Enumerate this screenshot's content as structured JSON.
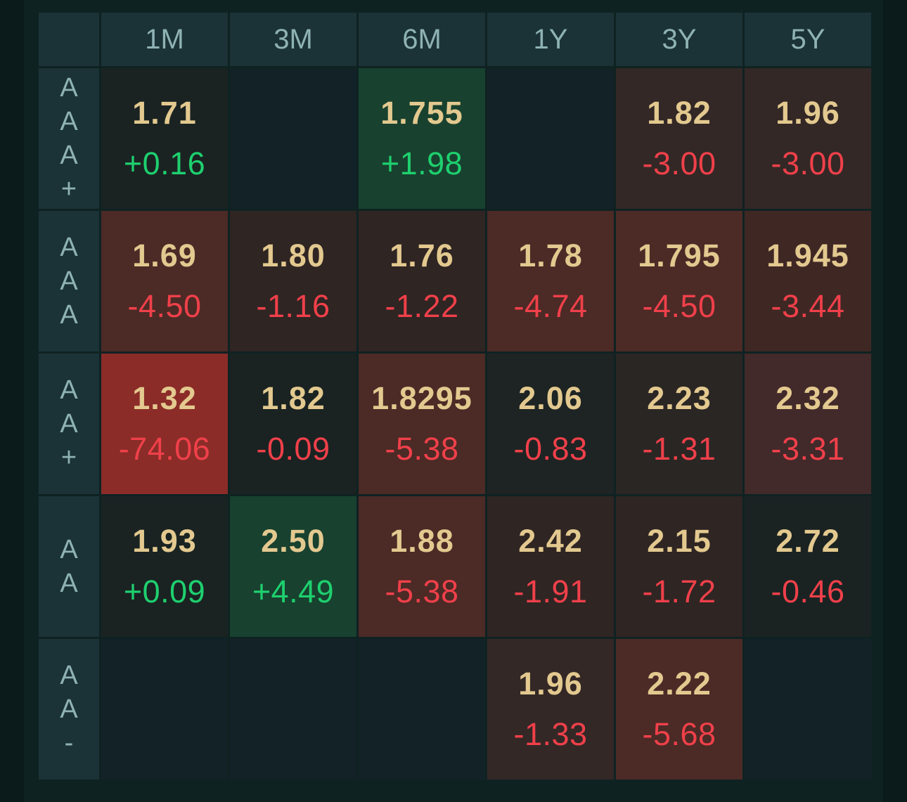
{
  "columns": [
    "1M",
    "3M",
    "6M",
    "1Y",
    "3Y",
    "5Y"
  ],
  "colors": {
    "neutral": "#132226",
    "neutral_dark": "#1a2322",
    "green_mid": "#18412f",
    "red_light": "#2f2523",
    "red_mid": "#4c2a26",
    "red_strong": "#8b2c28",
    "value_text": "#e3c98f",
    "positive": "#1ed06f",
    "negative": "#f0404a"
  },
  "rows": [
    {
      "label_chars": [
        "A",
        "A",
        "A",
        "+"
      ],
      "cells": [
        {
          "value": "1.71",
          "change": "+0.16",
          "shade": "#1a2322"
        },
        {
          "value": "",
          "change": "",
          "shade": "#132226"
        },
        {
          "value": "1.755",
          "change": "+1.98",
          "shade": "#18412f"
        },
        {
          "value": "",
          "change": "",
          "shade": "#132226"
        },
        {
          "value": "1.82",
          "change": "-3.00",
          "shade": "#332826"
        },
        {
          "value": "1.96",
          "change": "-3.00",
          "shade": "#332826"
        }
      ]
    },
    {
      "label_chars": [
        "A",
        "A",
        "A"
      ],
      "cells": [
        {
          "value": "1.69",
          "change": "-4.50",
          "shade": "#4c2a26"
        },
        {
          "value": "1.80",
          "change": "-1.16",
          "shade": "#2f2523"
        },
        {
          "value": "1.76",
          "change": "-1.22",
          "shade": "#2f2523"
        },
        {
          "value": "1.78",
          "change": "-4.74",
          "shade": "#4c2a26"
        },
        {
          "value": "1.795",
          "change": "-4.50",
          "shade": "#4c2a26"
        },
        {
          "value": "1.945",
          "change": "-3.44",
          "shade": "#3f2824"
        }
      ]
    },
    {
      "label_chars": [
        "A",
        "A",
        "+"
      ],
      "cells": [
        {
          "value": "1.32",
          "change": "-74.06",
          "shade": "#8b2c28"
        },
        {
          "value": "1.82",
          "change": "-0.09",
          "shade": "#1a2322"
        },
        {
          "value": "1.8295",
          "change": "-5.38",
          "shade": "#4c2a26"
        },
        {
          "value": "2.06",
          "change": "-0.83",
          "shade": "#1e2423"
        },
        {
          "value": "2.23",
          "change": "-1.31",
          "shade": "#2a2624"
        },
        {
          "value": "2.32",
          "change": "-3.31",
          "shade": "#42292a"
        }
      ]
    },
    {
      "label_chars": [
        "A",
        "A"
      ],
      "cells": [
        {
          "value": "1.93",
          "change": "+0.09",
          "shade": "#1a2322"
        },
        {
          "value": "2.50",
          "change": "+4.49",
          "shade": "#18412f"
        },
        {
          "value": "1.88",
          "change": "-5.38",
          "shade": "#4c2a26"
        },
        {
          "value": "2.42",
          "change": "-1.91",
          "shade": "#2f2523"
        },
        {
          "value": "2.15",
          "change": "-1.72",
          "shade": "#2f2523"
        },
        {
          "value": "2.72",
          "change": "-0.46",
          "shade": "#1a2322"
        }
      ]
    },
    {
      "label_chars": [
        "A",
        "A",
        "-"
      ],
      "cells": [
        {
          "value": "",
          "change": "",
          "shade": "#132226"
        },
        {
          "value": "",
          "change": "",
          "shade": "#132226"
        },
        {
          "value": "",
          "change": "",
          "shade": "#132226"
        },
        {
          "value": "1.96",
          "change": "-1.33",
          "shade": "#332826"
        },
        {
          "value": "2.22",
          "change": "-5.68",
          "shade": "#4c2a26"
        },
        {
          "value": "",
          "change": "",
          "shade": "#132226"
        }
      ]
    }
  ]
}
